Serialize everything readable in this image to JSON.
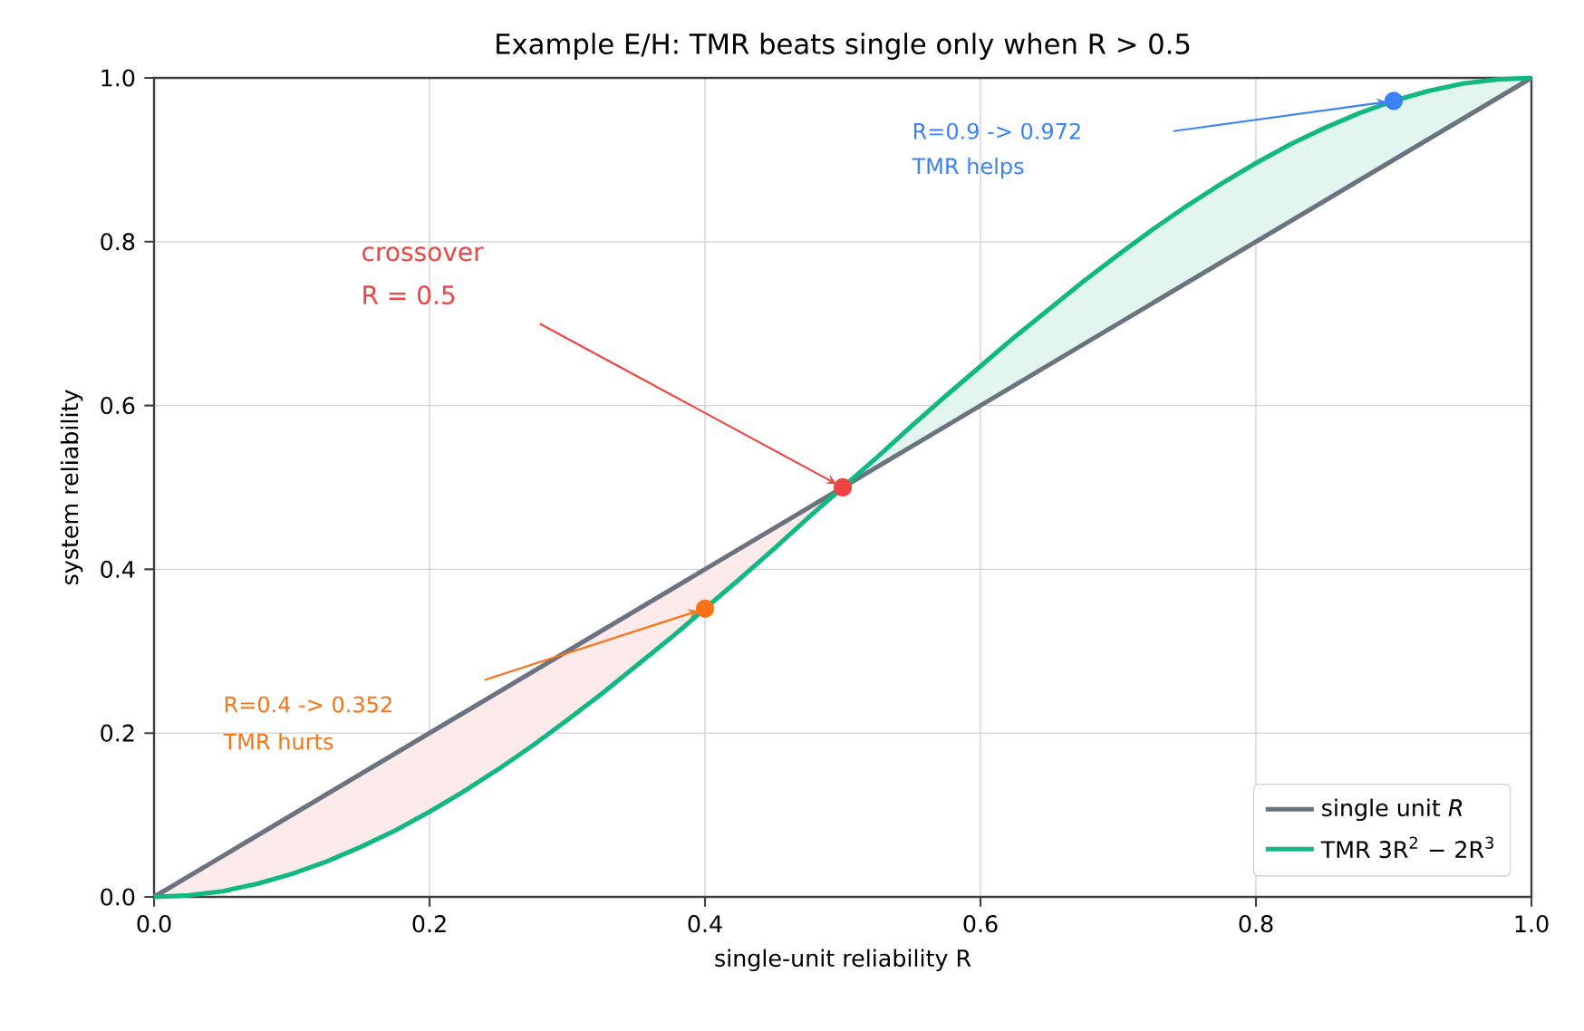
{
  "chart_data": {
    "type": "line",
    "title": "Example E/H: TMR beats single only when R > 0.5",
    "xlabel": "single-unit reliability  R",
    "ylabel": "system reliability",
    "xlim": [
      0,
      1
    ],
    "ylim": [
      0,
      1
    ],
    "xticks": [
      {
        "value": 0,
        "label": "0.0"
      },
      {
        "value": 0.2,
        "label": "0.2"
      },
      {
        "value": 0.4,
        "label": "0.4"
      },
      {
        "value": 0.6,
        "label": "0.6"
      },
      {
        "value": 0.8,
        "label": "0.8"
      },
      {
        "value": 1,
        "label": "1.0"
      }
    ],
    "yticks": [
      {
        "value": 0,
        "label": "0.0"
      },
      {
        "value": 0.2,
        "label": "0.2"
      },
      {
        "value": 0.4,
        "label": "0.4"
      },
      {
        "value": 0.6,
        "label": "0.6"
      },
      {
        "value": 0.8,
        "label": "0.8"
      },
      {
        "value": 1,
        "label": "1.0"
      }
    ],
    "grid": true,
    "legend": "bottom right",
    "series": [
      {
        "type": "area",
        "color": "#fdeaea",
        "x": [
          0,
          0.025,
          0.05,
          0.075,
          0.1,
          0.125,
          0.15,
          0.175,
          0.2,
          0.225,
          0.25,
          0.275,
          0.3,
          0.325,
          0.35,
          0.375,
          0.4,
          0.425,
          0.45,
          0.475,
          0.5
        ],
        "values": [
          0,
          0.002,
          0.007,
          0.016,
          0.028,
          0.043,
          0.061,
          0.081,
          0.104,
          0.129,
          0.156,
          0.185,
          0.216,
          0.248,
          0.282,
          0.316,
          0.352,
          0.388,
          0.425,
          0.463,
          0.5
        ]
      },
      {
        "type": "area",
        "color": "#e2f5ee",
        "x": [
          0.5,
          0.525,
          0.55,
          0.575,
          0.6,
          0.625,
          0.65,
          0.675,
          0.7,
          0.725,
          0.75,
          0.775,
          0.8,
          0.825,
          0.85,
          0.875,
          0.9,
          0.925,
          0.95,
          0.975,
          1
        ],
        "values": [
          0.5,
          0.537,
          0.575,
          0.612,
          0.648,
          0.684,
          0.718,
          0.752,
          0.784,
          0.815,
          0.844,
          0.871,
          0.896,
          0.919,
          0.939,
          0.957,
          0.972,
          0.984,
          0.993,
          0.998,
          1
        ]
      },
      {
        "name": "single unit  *R*",
        "color": "#6b7280",
        "x": [
          0,
          1
        ],
        "values": [
          0,
          1
        ]
      },
      {
        "name": "TMR  3R$^{2}$ − 2R$^{3}$",
        "color": "#10b981",
        "x": [
          0,
          0.025,
          0.05,
          0.075,
          0.1,
          0.125,
          0.15,
          0.175,
          0.2,
          0.225,
          0.25,
          0.275,
          0.3,
          0.325,
          0.35,
          0.375,
          0.4,
          0.425,
          0.45,
          0.475,
          0.5,
          0.525,
          0.55,
          0.575,
          0.6,
          0.625,
          0.65,
          0.675,
          0.7,
          0.725,
          0.75,
          0.775,
          0.8,
          0.825,
          0.85,
          0.875,
          0.9,
          0.925,
          0.95,
          0.975,
          1
        ],
        "values": [
          0,
          0.002,
          0.007,
          0.016,
          0.028,
          0.043,
          0.061,
          0.081,
          0.104,
          0.129,
          0.156,
          0.185,
          0.216,
          0.248,
          0.282,
          0.316,
          0.352,
          0.388,
          0.425,
          0.463,
          0.5,
          0.537,
          0.575,
          0.612,
          0.648,
          0.684,
          0.718,
          0.752,
          0.784,
          0.815,
          0.844,
          0.871,
          0.896,
          0.919,
          0.939,
          0.957,
          0.972,
          0.984,
          0.993,
          0.998,
          1
        ]
      },
      {
        "type": "scatter",
        "color": "#f97316",
        "x": [
          0.4
        ],
        "values": [
          0.352
        ]
      },
      {
        "type": "scatter",
        "color": "#ef4444",
        "x": [
          0.5
        ],
        "values": [
          0.5
        ]
      },
      {
        "type": "scatter",
        "color": "#3b82f6",
        "x": [
          0.9
        ],
        "values": [
          0.972
        ]
      }
    ],
    "annotations": [
      "crossover",
      "R = 0.5",
      "R=0.4 -> 0.352",
      "TMR hurts",
      "R=0.9 -> 0.972",
      "TMR helps"
    ]
  }
}
